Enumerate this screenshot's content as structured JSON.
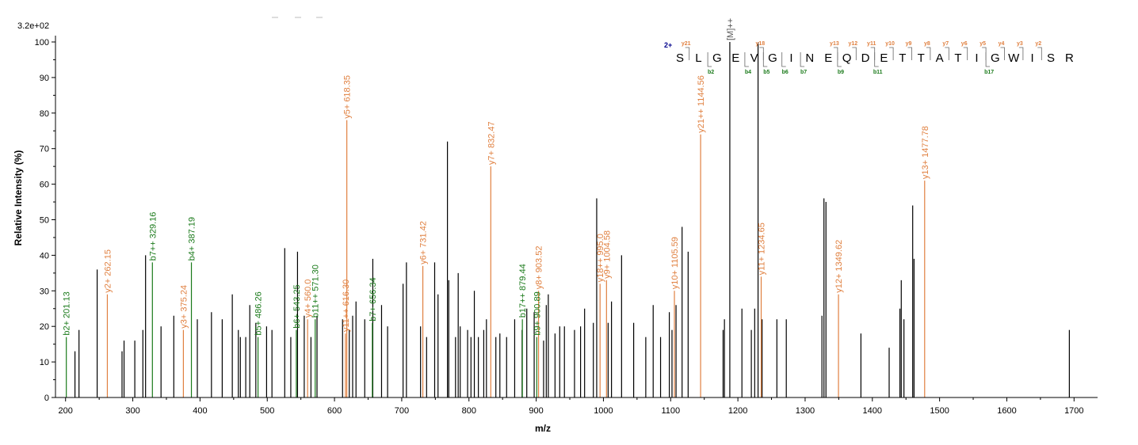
{
  "chart_data": {
    "type": "bar",
    "scale_label": "3.2e+02",
    "xlabel": "m/z",
    "ylabel": "Relative   Intensity (%)",
    "xlim": [
      185,
      1735
    ],
    "ylim": [
      0,
      100
    ],
    "x_ticks": [
      "200",
      "300",
      "400",
      "500",
      "600",
      "700",
      "800",
      "900",
      "1000",
      "1100",
      "1200",
      "1300",
      "1400",
      "1500",
      "1600",
      "1700"
    ],
    "y_ticks": [
      "0",
      "10",
      "20",
      "30",
      "40",
      "50",
      "60",
      "70",
      "80",
      "90",
      "100"
    ],
    "colors": {
      "b_ion": "#1a7a1a",
      "y_ion": "#e08040",
      "unlabeled": "#000000",
      "charge": "#00008b",
      "precursor": "#555555"
    },
    "precursor_label": "[M]++",
    "charge_label": "2+",
    "peptide_sequence": [
      "S",
      "L",
      "G",
      "E",
      "V",
      "G",
      "I",
      "N",
      "E",
      "Q",
      "D",
      "E",
      "T",
      "T",
      "A",
      "T",
      "I",
      "G",
      "W",
      "I",
      "S",
      "R"
    ],
    "sequence_y_ions": [
      {
        "after": 1,
        "label": "y21"
      },
      {
        "after": 5,
        "label": "y18"
      },
      {
        "after": 9,
        "label": "y13"
      },
      {
        "after": 10,
        "label": "y12"
      },
      {
        "after": 11,
        "label": "y11"
      },
      {
        "after": 12,
        "label": "y10"
      },
      {
        "after": 13,
        "label": "y9"
      },
      {
        "after": 14,
        "label": "y8"
      },
      {
        "after": 15,
        "label": "y7"
      },
      {
        "after": 16,
        "label": "y6"
      },
      {
        "after": 17,
        "label": "y5"
      },
      {
        "after": 18,
        "label": "y4"
      },
      {
        "after": 19,
        "label": "y3"
      },
      {
        "after": 20,
        "label": "y2"
      }
    ],
    "sequence_b_ions": [
      {
        "after": 2,
        "label": "b2"
      },
      {
        "after": 4,
        "label": "b4"
      },
      {
        "after": 5,
        "label": "b5"
      },
      {
        "after": 6,
        "label": "b6"
      },
      {
        "after": 7,
        "label": "b7"
      },
      {
        "after": 9,
        "label": "b9"
      },
      {
        "after": 11,
        "label": "b11"
      },
      {
        "after": 17,
        "label": "b17"
      }
    ],
    "labeled_peaks": [
      {
        "mz": 201.13,
        "intensity": 17,
        "ion": "b",
        "label": "b2+ 201.13"
      },
      {
        "mz": 262.15,
        "intensity": 29,
        "ion": "y",
        "label": "y2+ 262.15"
      },
      {
        "mz": 329.16,
        "intensity": 38,
        "ion": "b",
        "label": "b7++ 329.16"
      },
      {
        "mz": 375.24,
        "intensity": 19,
        "ion": "y",
        "label": "y3+ 375.24"
      },
      {
        "mz": 387.19,
        "intensity": 38,
        "ion": "b",
        "label": "b4+ 387.19"
      },
      {
        "mz": 486.26,
        "intensity": 17,
        "ion": "b",
        "label": "b5+ 486.26"
      },
      {
        "mz": 543.25,
        "intensity": 19,
        "ion": "b",
        "label": "b6+ 543.25"
      },
      {
        "mz": 560.0,
        "intensity": 22,
        "ion": "y",
        "label": "y4+ 560.0"
      },
      {
        "mz": 571.3,
        "intensity": 22,
        "ion": "b",
        "label": "b11++ 571.30"
      },
      {
        "mz": 616.3,
        "intensity": 18,
        "ion": "y",
        "label": "y11++ 616.30"
      },
      {
        "mz": 618.35,
        "intensity": 78,
        "ion": "y",
        "label": "y5+ 618.35"
      },
      {
        "mz": 656.34,
        "intensity": 21,
        "ion": "b",
        "label": "b7+ 656.34"
      },
      {
        "mz": 731.42,
        "intensity": 37,
        "ion": "y",
        "label": "y6+ 731.42"
      },
      {
        "mz": 832.47,
        "intensity": 65,
        "ion": "y",
        "label": "y7+ 832.47"
      },
      {
        "mz": 879.44,
        "intensity": 22,
        "ion": "b",
        "label": "b17++ 879.44"
      },
      {
        "mz": 900.89,
        "intensity": 17,
        "ion": "b",
        "label": "b9+ 900.89"
      },
      {
        "mz": 903.52,
        "intensity": 30,
        "ion": "y",
        "label": "y8+ 903.52"
      },
      {
        "mz": 995.0,
        "intensity": 32,
        "ion": "y",
        "label": "y18++ 995.0"
      },
      {
        "mz": 1004.58,
        "intensity": 33,
        "ion": "y",
        "label": "y9+ 1004.58"
      },
      {
        "mz": 1105.59,
        "intensity": 30,
        "ion": "y",
        "label": "y10+ 1105.59"
      },
      {
        "mz": 1144.56,
        "intensity": 74,
        "ion": "y",
        "label": "y21++ 1144.56"
      },
      {
        "mz": 1234.65,
        "intensity": 34,
        "ion": "y",
        "label": "y11+ 1234.65"
      },
      {
        "mz": 1349.62,
        "intensity": 29,
        "ion": "y",
        "label": "y12+ 1349.62"
      },
      {
        "mz": 1477.78,
        "intensity": 61,
        "ion": "y",
        "label": "y13+ 1477.78"
      }
    ],
    "precursor_peak": {
      "mz": 1188,
      "intensity": 100
    },
    "unlabeled_peaks": [
      [
        214,
        13
      ],
      [
        220,
        19
      ],
      [
        247,
        36
      ],
      [
        284,
        13
      ],
      [
        287,
        16
      ],
      [
        303,
        16
      ],
      [
        315,
        19
      ],
      [
        319,
        40
      ],
      [
        342,
        20
      ],
      [
        361,
        23
      ],
      [
        396,
        22
      ],
      [
        417,
        24
      ],
      [
        433,
        22
      ],
      [
        448,
        29
      ],
      [
        457,
        19
      ],
      [
        460,
        17
      ],
      [
        468,
        17
      ],
      [
        474,
        26
      ],
      [
        483,
        21
      ],
      [
        499,
        20
      ],
      [
        507,
        19
      ],
      [
        526,
        42
      ],
      [
        535,
        17
      ],
      [
        545,
        41
      ],
      [
        555,
        23
      ],
      [
        565,
        17
      ],
      [
        574,
        23
      ],
      [
        612,
        22
      ],
      [
        622,
        19
      ],
      [
        627,
        23
      ],
      [
        632,
        27
      ],
      [
        645,
        22
      ],
      [
        657,
        39
      ],
      [
        670,
        26
      ],
      [
        679,
        20
      ],
      [
        702,
        32
      ],
      [
        707,
        38
      ],
      [
        728,
        20
      ],
      [
        737,
        17
      ],
      [
        749,
        38
      ],
      [
        754,
        29
      ],
      [
        768,
        72
      ],
      [
        770,
        33
      ],
      [
        780,
        17
      ],
      [
        784,
        35
      ],
      [
        787,
        20
      ],
      [
        798,
        19
      ],
      [
        803,
        17
      ],
      [
        808,
        30
      ],
      [
        814,
        17
      ],
      [
        822,
        19
      ],
      [
        826,
        22
      ],
      [
        840,
        17
      ],
      [
        846,
        18
      ],
      [
        856,
        17
      ],
      [
        868,
        22
      ],
      [
        879,
        19
      ],
      [
        886,
        25
      ],
      [
        897,
        24
      ],
      [
        911,
        16
      ],
      [
        915,
        26
      ],
      [
        918,
        29
      ],
      [
        928,
        18
      ],
      [
        935,
        20
      ],
      [
        942,
        20
      ],
      [
        957,
        19
      ],
      [
        966,
        20
      ],
      [
        972,
        25
      ],
      [
        985,
        21
      ],
      [
        990,
        56
      ],
      [
        1007,
        21
      ],
      [
        1012,
        27
      ],
      [
        1027,
        40
      ],
      [
        1045,
        21
      ],
      [
        1063,
        17
      ],
      [
        1074,
        26
      ],
      [
        1085,
        17
      ],
      [
        1098,
        24
      ],
      [
        1102,
        19
      ],
      [
        1108,
        26
      ],
      [
        1117,
        48
      ],
      [
        1126,
        41
      ],
      [
        1178,
        19
      ],
      [
        1180,
        22
      ],
      [
        1206,
        25
      ],
      [
        1220,
        19
      ],
      [
        1225,
        25
      ],
      [
        1230,
        100
      ],
      [
        1236,
        22
      ],
      [
        1258,
        22
      ],
      [
        1272,
        22
      ],
      [
        1325,
        23
      ],
      [
        1328,
        56
      ],
      [
        1331,
        55
      ],
      [
        1383,
        18
      ],
      [
        1425,
        14
      ],
      [
        1441,
        25
      ],
      [
        1443,
        33
      ],
      [
        1447,
        22
      ],
      [
        1460,
        54
      ],
      [
        1462,
        39
      ],
      [
        1693,
        19
      ]
    ]
  }
}
